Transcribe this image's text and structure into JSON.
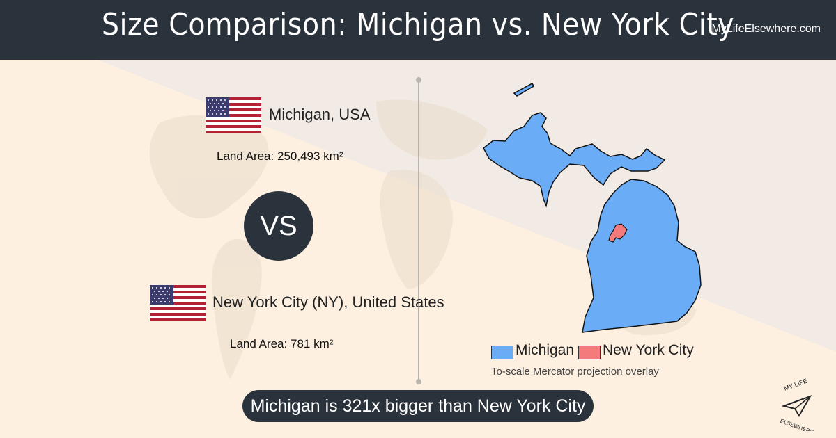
{
  "header": {
    "title": "Size Comparison: Michigan vs. New York City",
    "site": "MyLifeElsewhere.com"
  },
  "left": {
    "place1": {
      "name": "Michigan, USA",
      "area_label": "Land Area:",
      "area_value": "250,493 km²",
      "flag": "us-flag-icon"
    },
    "vs": "VS",
    "place2": {
      "name": "New York City (NY), United States",
      "area_label": "Land Area:",
      "area_value": "781 km²",
      "flag": "us-flag-icon"
    }
  },
  "map": {
    "legend": [
      {
        "label": "Michigan",
        "color": "#6aacf5"
      },
      {
        "label": "New York City",
        "color": "#f37b7b"
      }
    ],
    "note": "To-scale Mercator projection overlay"
  },
  "banner": "Michigan is 321x bigger than New York City",
  "logo": {
    "line1": "MY LIFE",
    "line2": "ELSEWHERE"
  }
}
